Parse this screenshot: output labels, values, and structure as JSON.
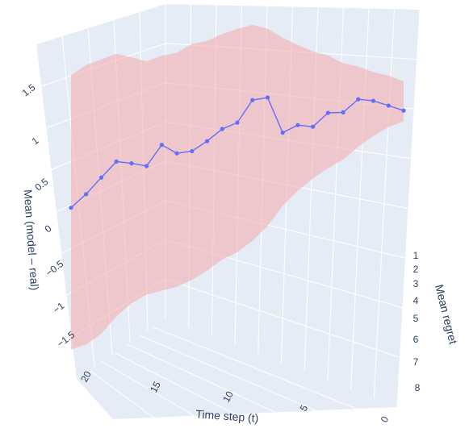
{
  "chart_data": {
    "type": "line",
    "is_3d": true,
    "x_axis": {
      "label": "Time step (t)",
      "ticks": [
        "0",
        "5",
        "10",
        "15",
        "20"
      ],
      "range": [
        0,
        22
      ]
    },
    "y_axis": {
      "label": "Mean regret",
      "ticks": [
        "1",
        "2",
        "3",
        "4",
        "5",
        "6",
        "7",
        "8"
      ],
      "range": [
        0.5,
        8.5
      ]
    },
    "z_axis": {
      "label": "Mean (model – real)",
      "ticks": [
        "−1.5",
        "−1",
        "−0.5",
        "0",
        "0.5",
        "1",
        "1.5"
      ],
      "range": [
        -1.8,
        1.9
      ]
    },
    "series": [
      {
        "line_color": "#636efa",
        "band_color": "#f4a9a8",
        "x": [
          22,
          21,
          20,
          19,
          18,
          17,
          16,
          15,
          14,
          13,
          12,
          11,
          10,
          9,
          8,
          7,
          6,
          5,
          4,
          3,
          2,
          1,
          0
        ],
        "values": [
          0.0,
          0.15,
          0.33,
          0.5,
          0.48,
          0.45,
          0.67,
          0.58,
          0.6,
          0.7,
          0.82,
          0.88,
          1.1,
          1.12,
          0.77,
          0.84,
          0.82,
          0.95,
          0.95,
          1.07,
          1.05,
          1.0,
          0.95
        ],
        "lower": [
          -1.55,
          -1.48,
          -1.35,
          -1.15,
          -1.0,
          -0.9,
          -0.85,
          -0.8,
          -0.72,
          -0.62,
          -0.5,
          -0.42,
          -0.3,
          -0.15,
          0.05,
          0.2,
          0.32,
          0.42,
          0.5,
          0.62,
          0.72,
          0.8,
          0.85
        ],
        "upper": [
          1.45,
          1.55,
          1.6,
          1.65,
          1.6,
          1.55,
          1.6,
          1.62,
          1.7,
          1.72,
          1.78,
          1.82,
          1.85,
          1.8,
          1.7,
          1.62,
          1.55,
          1.5,
          1.42,
          1.38,
          1.32,
          1.28,
          1.22
        ]
      }
    ]
  }
}
